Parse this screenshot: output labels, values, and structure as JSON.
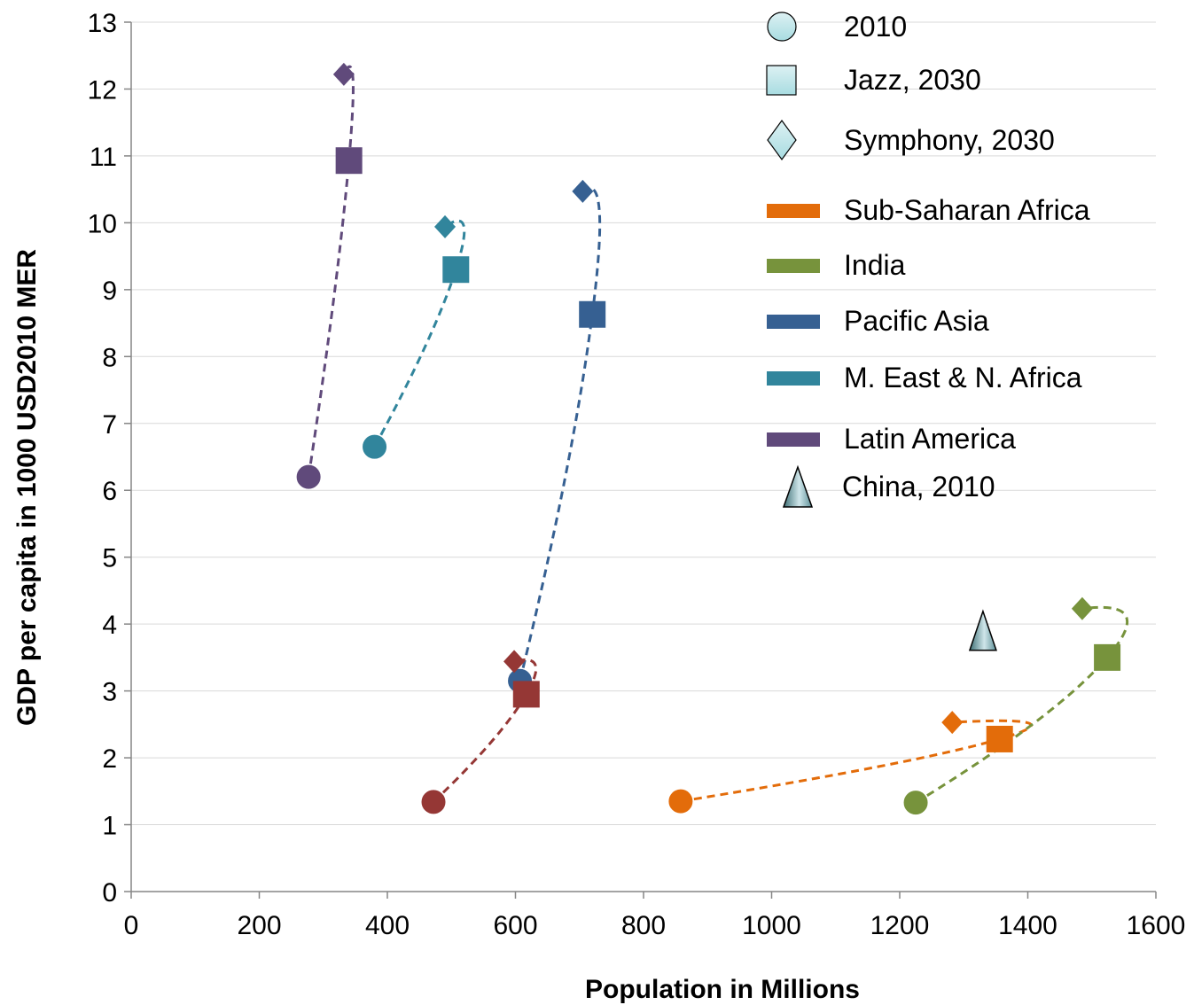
{
  "chart_data": {
    "type": "scatter",
    "title": "",
    "xlabel": "Population in Millions",
    "ylabel": "GDP per capita in 1000 USD2010 MER",
    "xlim": [
      0,
      1600
    ],
    "ylim": [
      0,
      13
    ],
    "xticks": [
      0,
      200,
      400,
      600,
      800,
      1000,
      1200,
      1400,
      1600
    ],
    "yticks": [
      0,
      1,
      2,
      3,
      4,
      5,
      6,
      7,
      8,
      9,
      10,
      11,
      12,
      13
    ],
    "grid": "horizontal",
    "legend_position": "top-right",
    "marker_legend": [
      {
        "label": "2010",
        "marker": "circle"
      },
      {
        "label": "Jazz, 2030",
        "marker": "square"
      },
      {
        "label": "Symphony, 2030",
        "marker": "diamond"
      }
    ],
    "series": [
      {
        "name": "Sub-Saharan Africa",
        "color": "#E36C0A",
        "points": {
          "2010": [
            858,
            1.35
          ],
          "jazz_2030": [
            1356,
            2.28
          ],
          "symphony_2030": [
            1282,
            2.53
          ]
        }
      },
      {
        "name": "India",
        "color": "#77933C",
        "points": {
          "2010": [
            1225,
            1.33
          ],
          "jazz_2030": [
            1524,
            3.5
          ],
          "symphony_2030": [
            1485,
            4.23
          ]
        }
      },
      {
        "name": "Pacific Asia",
        "color": "#366092",
        "points": {
          "2010": [
            607,
            3.15
          ],
          "jazz_2030": [
            720,
            8.63
          ],
          "symphony_2030": [
            705,
            10.47
          ]
        }
      },
      {
        "name": "M. East & N. Africa",
        "color": "#31859C",
        "points": {
          "2010": [
            380,
            6.65
          ],
          "jazz_2030": [
            507,
            9.3
          ],
          "symphony_2030": [
            490,
            9.94
          ]
        }
      },
      {
        "name": "Latin America",
        "color": "#604A7B",
        "points": {
          "2010": [
            277,
            6.2
          ],
          "jazz_2030": [
            340,
            10.93
          ],
          "symphony_2030": [
            332,
            12.22
          ]
        }
      },
      {
        "name": "",
        "color": "#953735",
        "points": {
          "2010": [
            472,
            1.34
          ],
          "jazz_2030": [
            617,
            2.95
          ],
          "symphony_2030": [
            598,
            3.44
          ]
        }
      }
    ],
    "china_2010": {
      "label": "China, 2010",
      "x": 1330,
      "y": 3.9
    }
  }
}
